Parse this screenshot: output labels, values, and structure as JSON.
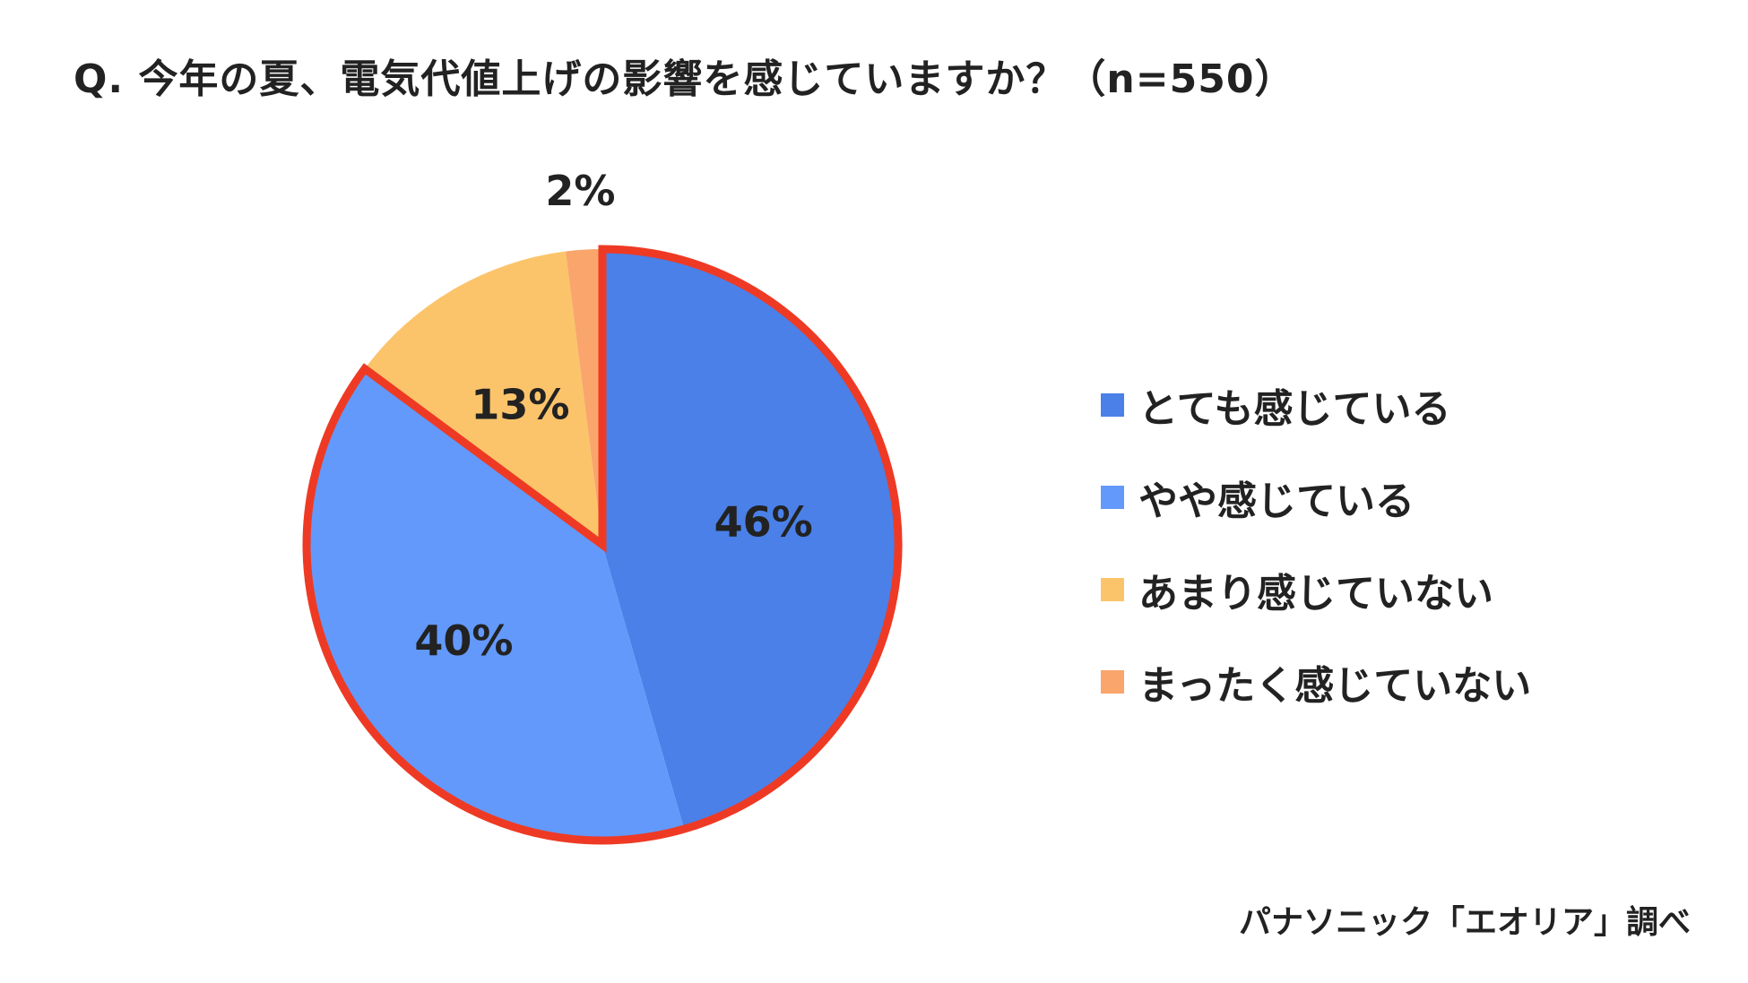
{
  "title": "Q. 今年の夏、電気代値上げの影響を感じていますか？（n=550）",
  "source": "パナソニック「エオリア」調べ",
  "chart_data": {
    "type": "pie",
    "title": "Q. 今年の夏、電気代値上げの影響を感じていますか？（n=550）",
    "sample_size": "n=550",
    "categories": [
      "とても感じている",
      "やや感じている",
      "あまり感じていない",
      "まったく感じていない"
    ],
    "values": [
      46,
      40,
      13,
      2
    ],
    "value_labels": [
      "46%",
      "40%",
      "13%",
      "2%"
    ],
    "unit": "%",
    "colors": [
      "#4a80e8",
      "#6399fa",
      "#fcc46a",
      "#f9a56b"
    ],
    "highlight_outline_color": "#ee3a24",
    "highlighted_slices": [
      "とても感じている",
      "やや感じている"
    ],
    "start_angle": "12 o'clock",
    "direction": "clockwise",
    "legend_position": "right",
    "grid": false
  }
}
